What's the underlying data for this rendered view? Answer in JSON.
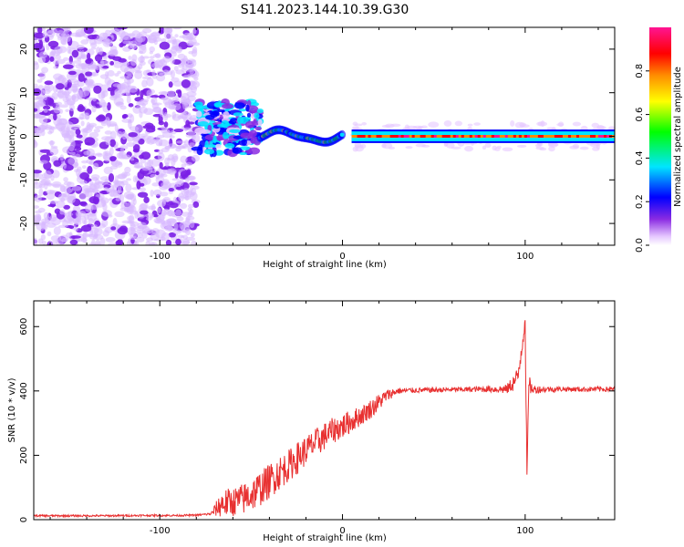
{
  "figure_title": "S141.2023.144.10.39.G30",
  "chart_data": [
    {
      "type": "heatmap",
      "xlabel": "Height of straight line (km)",
      "ylabel": "Frequency (Hz)",
      "xlim": [
        -169,
        149
      ],
      "ylim": [
        -25,
        25
      ],
      "xticks": [
        -100,
        0,
        100
      ],
      "yticks": [
        -20,
        -10,
        0,
        10,
        20
      ],
      "grid": false,
      "colorbar": {
        "label": "Normalized spectral amplitude",
        "ticks": [
          0.0,
          0.2,
          0.4,
          0.6,
          0.8
        ],
        "range": [
          0,
          1
        ],
        "colors": [
          "#ffffff",
          "#e6c8ff",
          "#8a2be2",
          "#0000ff",
          "#00e5ff",
          "#00ff00",
          "#ffff00",
          "#ff8c00",
          "#ff0000",
          "#ff1493"
        ]
      },
      "regions": [
        {
          "x": [
            -169,
            -80
          ],
          "freq": [
            -25,
            25
          ],
          "amplitude": 0.05,
          "pattern": "broadband noise"
        },
        {
          "x": [
            -80,
            -45
          ],
          "freq": [
            -4,
            8
          ],
          "amplitude": 0.3,
          "pattern": "patchy"
        },
        {
          "x": [
            -45,
            0
          ],
          "freq": [
            -3,
            3
          ],
          "amplitude": 0.5,
          "pattern": "wavy line"
        },
        {
          "x": [
            5,
            149
          ],
          "freq": [
            -0.5,
            0.5
          ],
          "amplitude": 0.85,
          "pattern": "steady line near 0 Hz"
        }
      ]
    },
    {
      "type": "line",
      "xlabel": "Height of straight line (km)",
      "ylabel": "SNR (10 * v/v)",
      "xlim": [
        -169,
        149
      ],
      "ylim": [
        0,
        680
      ],
      "xticks": [
        -100,
        0,
        100
      ],
      "yticks": [
        0,
        200,
        400,
        600
      ],
      "grid": false,
      "series": [
        {
          "color": "#e83030",
          "x": [
            -169,
            -150,
            -130,
            -110,
            -90,
            -80,
            -72,
            -66,
            -60,
            -54,
            -48,
            -42,
            -36,
            -30,
            -24,
            -18,
            -12,
            -6,
            0,
            6,
            12,
            18,
            24,
            30,
            40,
            50,
            60,
            70,
            80,
            90,
            96,
            100,
            101,
            102,
            104,
            110,
            120,
            130,
            140,
            149
          ],
          "y": [
            12,
            12,
            12,
            13,
            13,
            14,
            18,
            50,
            55,
            65,
            85,
            110,
            140,
            165,
            195,
            225,
            250,
            275,
            290,
            310,
            330,
            355,
            385,
            400,
            402,
            403,
            404,
            405,
            406,
            405,
            440,
            620,
            140,
            420,
            405,
            405,
            406,
            405,
            406,
            405
          ],
          "noise": [
            3,
            3,
            3,
            3,
            3,
            3,
            4,
            45,
            45,
            50,
            55,
            55,
            55,
            50,
            50,
            45,
            45,
            40,
            40,
            35,
            30,
            30,
            20,
            10,
            8,
            8,
            8,
            8,
            10,
            15,
            35,
            30,
            30,
            30,
            15,
            10,
            8,
            8,
            8,
            8
          ]
        }
      ]
    }
  ]
}
